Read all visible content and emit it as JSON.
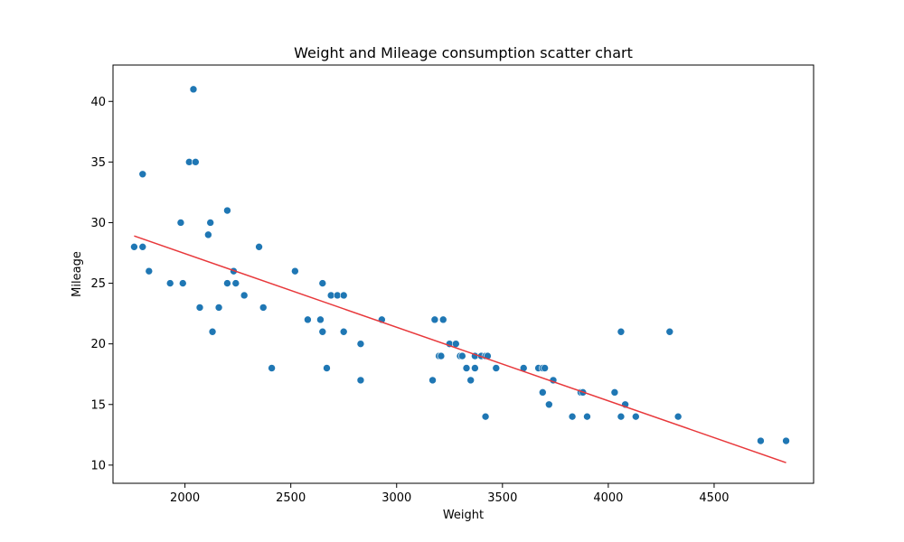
{
  "chart_data": {
    "type": "scatter",
    "title": "Weight and Mileage consumption scatter chart",
    "xlabel": "Weight",
    "ylabel": "Mileage",
    "xlim": [
      1660,
      4970
    ],
    "ylim": [
      8.5,
      43.0
    ],
    "xticks": [
      2000,
      2500,
      3000,
      3500,
      4000,
      4500
    ],
    "yticks": [
      10,
      15,
      20,
      25,
      30,
      35,
      40
    ],
    "grid": false,
    "point_color": "#1f77b4",
    "line_color": "#e8383b",
    "points": [
      [
        1760,
        28
      ],
      [
        1800,
        34
      ],
      [
        1800,
        28
      ],
      [
        1830,
        26
      ],
      [
        1930,
        25
      ],
      [
        1980,
        30
      ],
      [
        1990,
        25
      ],
      [
        2020,
        35
      ],
      [
        2040,
        41
      ],
      [
        2050,
        35
      ],
      [
        2070,
        23
      ],
      [
        2110,
        29
      ],
      [
        2120,
        30
      ],
      [
        2130,
        21
      ],
      [
        2160,
        23
      ],
      [
        2200,
        31
      ],
      [
        2200,
        25
      ],
      [
        2230,
        26
      ],
      [
        2240,
        25
      ],
      [
        2280,
        24
      ],
      [
        2350,
        28
      ],
      [
        2370,
        23
      ],
      [
        2410,
        18
      ],
      [
        2520,
        26
      ],
      [
        2580,
        22
      ],
      [
        2640,
        22
      ],
      [
        2650,
        21
      ],
      [
        2650,
        25
      ],
      [
        2670,
        18
      ],
      [
        2690,
        24
      ],
      [
        2720,
        24
      ],
      [
        2750,
        21
      ],
      [
        2750,
        24
      ],
      [
        2830,
        17
      ],
      [
        2830,
        20
      ],
      [
        2930,
        22
      ],
      [
        3170,
        17
      ],
      [
        3180,
        22
      ],
      [
        3200,
        19
      ],
      [
        3210,
        19
      ],
      [
        3220,
        22
      ],
      [
        3250,
        20
      ],
      [
        3280,
        20
      ],
      [
        3300,
        19
      ],
      [
        3310,
        19
      ],
      [
        3330,
        18
      ],
      [
        3350,
        17
      ],
      [
        3370,
        18
      ],
      [
        3370,
        19
      ],
      [
        3400,
        19
      ],
      [
        3420,
        14
      ],
      [
        3420,
        19
      ],
      [
        3430,
        19
      ],
      [
        3470,
        18
      ],
      [
        3600,
        18
      ],
      [
        3670,
        18
      ],
      [
        3690,
        16
      ],
      [
        3690,
        18
      ],
      [
        3700,
        18
      ],
      [
        3720,
        15
      ],
      [
        3740,
        17
      ],
      [
        3830,
        14
      ],
      [
        3870,
        16
      ],
      [
        3880,
        16
      ],
      [
        3900,
        14
      ],
      [
        4030,
        16
      ],
      [
        4060,
        14
      ],
      [
        4060,
        21
      ],
      [
        4080,
        15
      ],
      [
        4130,
        14
      ],
      [
        4290,
        21
      ],
      [
        4330,
        14
      ],
      [
        4720,
        12
      ],
      [
        4840,
        12
      ]
    ],
    "trendline": {
      "x": [
        1760,
        4840
      ],
      "y": [
        28.9,
        10.2
      ]
    }
  }
}
